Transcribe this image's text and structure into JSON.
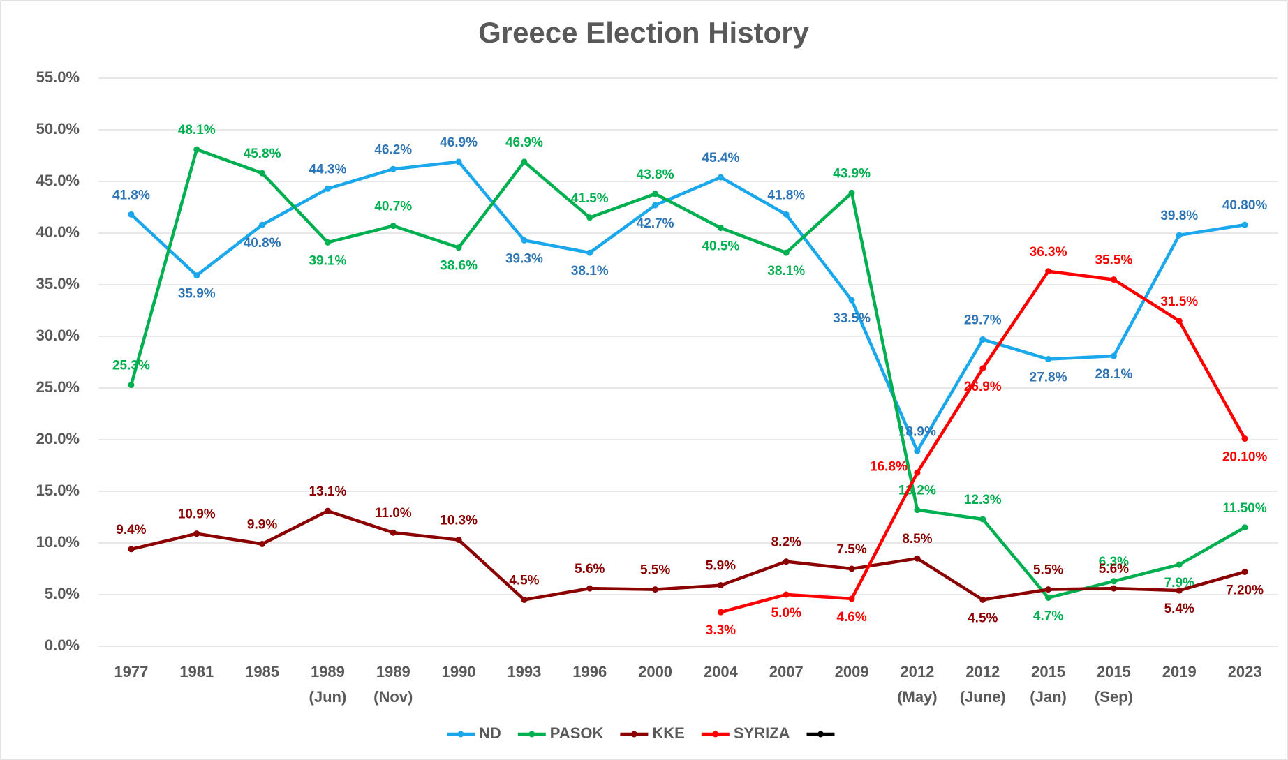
{
  "chart_data": {
    "type": "line",
    "title": "Greece Election History",
    "categories": [
      [
        "1977"
      ],
      [
        "1981"
      ],
      [
        "1985"
      ],
      [
        "1989",
        "(Jun)"
      ],
      [
        "1989",
        "(Nov)"
      ],
      [
        "1990"
      ],
      [
        "1993"
      ],
      [
        "1996"
      ],
      [
        "2000"
      ],
      [
        "2004"
      ],
      [
        "2007"
      ],
      [
        "2009"
      ],
      [
        "2012",
        "(May)"
      ],
      [
        "2012",
        "(June)"
      ],
      [
        "2015",
        "(Jan)"
      ],
      [
        "2015",
        "(Sep)"
      ],
      [
        "2019"
      ],
      [
        "2023"
      ]
    ],
    "ylim": [
      0,
      55
    ],
    "yticks": [
      {
        "value": 0,
        "label": "0.0%"
      },
      {
        "value": 5,
        "label": "5.0%"
      },
      {
        "value": 10,
        "label": "10.0%"
      },
      {
        "value": 15,
        "label": "15.0%"
      },
      {
        "value": 20,
        "label": "20.0%"
      },
      {
        "value": 25,
        "label": "25.0%"
      },
      {
        "value": 30,
        "label": "30.0%"
      },
      {
        "value": 35,
        "label": "35.0%"
      },
      {
        "value": 40,
        "label": "40.0%"
      },
      {
        "value": 45,
        "label": "45.0%"
      },
      {
        "value": 50,
        "label": "50.0%"
      },
      {
        "value": 55,
        "label": "55.0%"
      }
    ],
    "grid": true,
    "legend": "bottom",
    "series": [
      {
        "name": "ND",
        "color": "#1aa7ec",
        "label_color": "#2e75b6",
        "values": [
          41.8,
          35.9,
          40.8,
          44.3,
          46.2,
          46.9,
          39.3,
          38.1,
          42.7,
          45.4,
          41.8,
          33.5,
          18.9,
          29.7,
          27.8,
          28.1,
          39.8,
          40.8
        ],
        "value_labels": [
          "41.8%",
          "35.9%",
          "40.8%",
          "44.3%",
          "46.2%",
          "46.9%",
          "39.3%",
          "38.1%",
          "42.7%",
          "45.4%",
          "41.8%",
          "33.5%",
          "18.9%",
          "29.7%",
          "27.8%",
          "28.1%",
          "39.8%",
          "40.80%"
        ]
      },
      {
        "name": "PASOK",
        "color": "#00b050",
        "label_color": "#00b050",
        "values": [
          25.3,
          48.1,
          45.8,
          39.1,
          40.7,
          38.6,
          46.9,
          41.5,
          43.8,
          40.5,
          38.1,
          43.9,
          13.2,
          12.3,
          4.7,
          6.3,
          7.9,
          11.5
        ],
        "value_labels": [
          "25.3%",
          "48.1%",
          "45.8%",
          "39.1%",
          "40.7%",
          "38.6%",
          "46.9%",
          "41.5%",
          "43.8%",
          "40.5%",
          "38.1%",
          "43.9%",
          "13.2%",
          "12.3%",
          "4.7%",
          "6.3%",
          "7.9%",
          "11.50%"
        ]
      },
      {
        "name": "KKE",
        "color": "#8b0000",
        "label_color": "#8b0000",
        "values": [
          9.4,
          10.9,
          9.9,
          13.1,
          11.0,
          10.3,
          4.5,
          5.6,
          5.5,
          5.9,
          8.2,
          7.5,
          8.5,
          4.5,
          5.5,
          5.6,
          5.4,
          7.2
        ],
        "value_labels": [
          "9.4%",
          "10.9%",
          "9.9%",
          "13.1%",
          "11.0%",
          "10.3%",
          "4.5%",
          "5.6%",
          "5.5%",
          "5.9%",
          "8.2%",
          "7.5%",
          "8.5%",
          "4.5%",
          "5.5%",
          "5.6%",
          "5.4%",
          "7.20%"
        ]
      },
      {
        "name": "SYRIZA",
        "color": "#ff0000",
        "label_color": "#ff0000",
        "values": [
          null,
          null,
          null,
          null,
          null,
          null,
          null,
          null,
          null,
          3.3,
          5.0,
          4.6,
          16.8,
          26.9,
          36.3,
          35.5,
          31.5,
          20.1
        ],
        "value_labels": [
          null,
          null,
          null,
          null,
          null,
          null,
          null,
          null,
          null,
          "3.3%",
          "5.0%",
          "4.6%",
          "16.8%",
          "26.9%",
          "36.3%",
          "35.5%",
          "31.5%",
          "20.10%"
        ]
      },
      {
        "color": "#000000",
        "values": [
          null,
          null,
          null,
          null,
          null,
          null,
          null,
          null,
          null,
          null,
          null,
          null,
          null,
          null,
          null,
          null,
          null,
          null
        ]
      }
    ]
  }
}
